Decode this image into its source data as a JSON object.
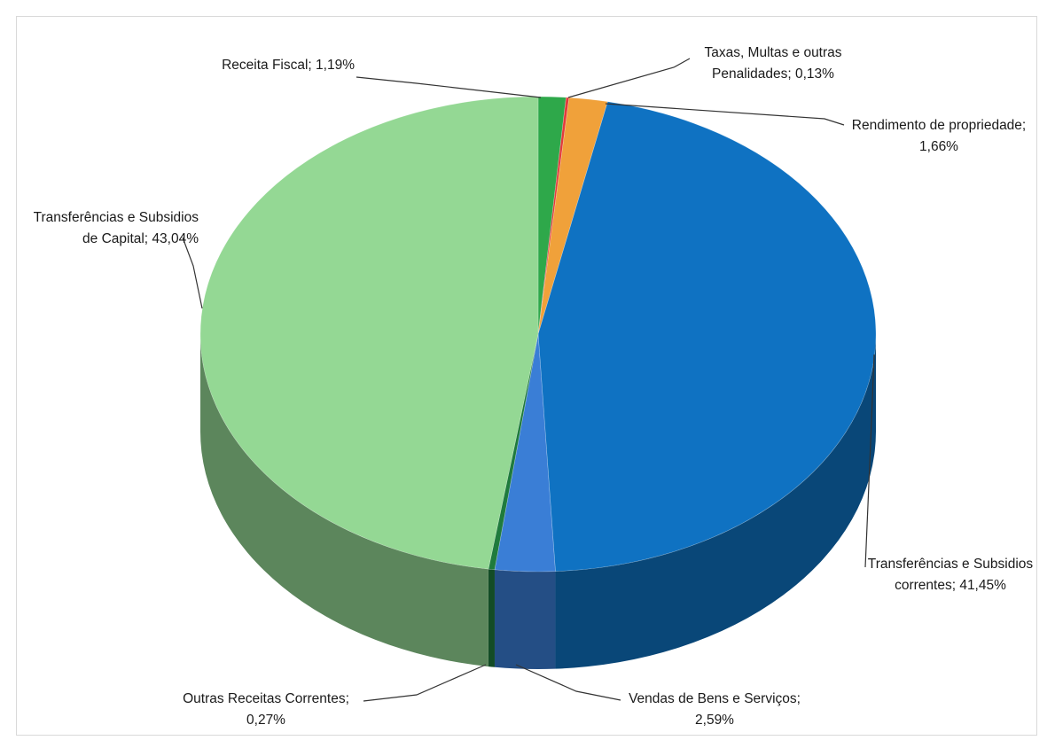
{
  "chart_data": {
    "type": "pie",
    "title": "",
    "style": "3d",
    "slices": [
      {
        "label": "Receita Fiscal",
        "label_lines": [
          "Receita Fiscal; 1,19%"
        ],
        "value": 1.19,
        "color": "#2ea84a"
      },
      {
        "label": "Taxas, Multas e outras Penalidades",
        "label_lines": [
          "Taxas, Multas e outras",
          "Penalidades; 0,13%"
        ],
        "value": 0.13,
        "color": "#e23b3b"
      },
      {
        "label": "Rendimento de propriedade",
        "label_lines": [
          "Rendimento de propriedade;",
          "1,66%"
        ],
        "value": 1.66,
        "color": "#f0a13a"
      },
      {
        "label": "Transferências e Subsidios correntes",
        "label_lines": [
          "Transferências e Subsidios",
          "correntes; 41,45%"
        ],
        "value": 41.45,
        "color": "#0f72c2"
      },
      {
        "label": "Vendas de Bens e Serviços",
        "label_lines": [
          "Vendas de Bens e Serviços;",
          "2,59%"
        ],
        "value": 2.59,
        "color": "#3a7ed6"
      },
      {
        "label": "Outras Receitas Correntes",
        "label_lines": [
          "Outras Receitas Correntes;",
          "0,27%"
        ],
        "value": 0.27,
        "color": "#1f7b3d"
      },
      {
        "label": "Transferências e Subsidios de Capital",
        "label_lines": [
          "Transferências e Subsidios",
          "de Capital; 43,04%"
        ],
        "value": 43.04,
        "color": "#94d894"
      }
    ]
  }
}
